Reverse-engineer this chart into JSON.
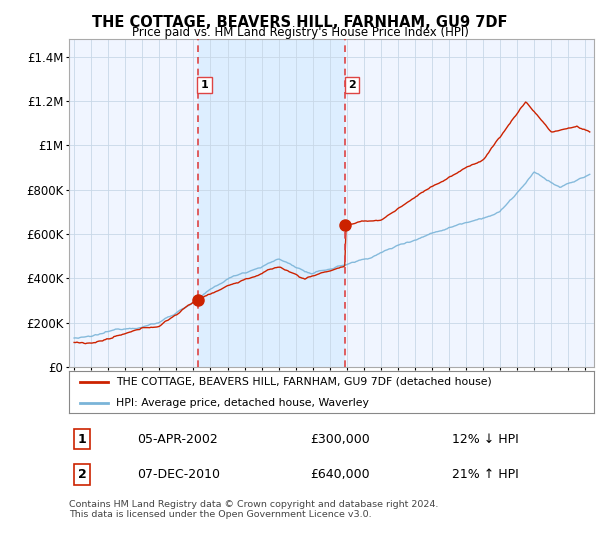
{
  "title": "THE COTTAGE, BEAVERS HILL, FARNHAM, GU9 7DF",
  "subtitle": "Price paid vs. HM Land Registry's House Price Index (HPI)",
  "ylabel_ticks": [
    "£0",
    "£200K",
    "£400K",
    "£600K",
    "£800K",
    "£1M",
    "£1.2M",
    "£1.4M"
  ],
  "ytick_values": [
    0,
    200000,
    400000,
    600000,
    800000,
    1000000,
    1200000,
    1400000
  ],
  "ylim": [
    0,
    1480000
  ],
  "xlim_start": 1994.7,
  "xlim_end": 2025.5,
  "purchase1_x": 2002.27,
  "purchase1_price": 300000,
  "purchase2_x": 2010.92,
  "purchase2_price": 640000,
  "legend_line1": "THE COTTAGE, BEAVERS HILL, FARNHAM, GU9 7DF (detached house)",
  "legend_line2": "HPI: Average price, detached house, Waverley",
  "table_row1": [
    "1",
    "05-APR-2002",
    "£300,000",
    "12% ↓ HPI"
  ],
  "table_row2": [
    "2",
    "07-DEC-2010",
    "£640,000",
    "21% ↑ HPI"
  ],
  "footnote": "Contains HM Land Registry data © Crown copyright and database right 2024.\nThis data is licensed under the Open Government Licence v3.0.",
  "hpi_color": "#7ab4d8",
  "price_color": "#cc2200",
  "vline_color": "#dd4444",
  "shade_color": "#ddeeff",
  "plot_bg": "#f0f5ff",
  "grid_color": "#c8d8e8"
}
